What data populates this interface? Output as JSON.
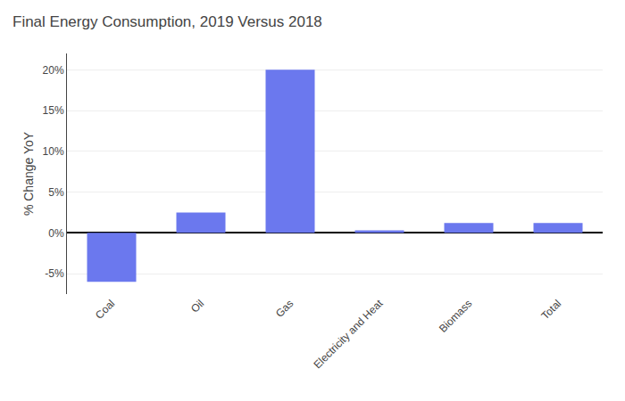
{
  "chart_data": {
    "type": "bar",
    "title": "Final Energy Consumption, 2019 Versus 2018",
    "categories": [
      "Coal",
      "Oil",
      "Gas",
      "Electricity and Heat",
      "Biomass",
      "Total"
    ],
    "values": [
      -6.0,
      2.5,
      20.0,
      0.3,
      1.2,
      1.2
    ],
    "color": "#6B78EE",
    "ylabel": "% Change YoY",
    "ylim": [
      -7.5,
      22
    ],
    "yticks": [
      {
        "value": -5,
        "label": "-5%"
      },
      {
        "value": 0,
        "label": "0%"
      },
      {
        "value": 5,
        "label": "5%"
      },
      {
        "value": 10,
        "label": "10%"
      },
      {
        "value": 15,
        "label": "15%"
      },
      {
        "value": 20,
        "label": "20%"
      }
    ],
    "grid": true
  }
}
